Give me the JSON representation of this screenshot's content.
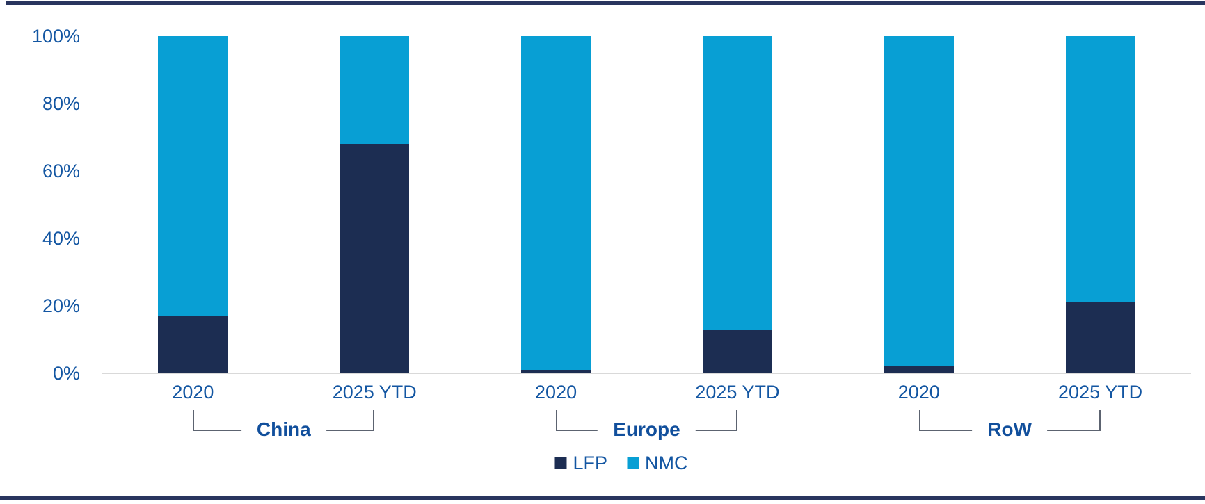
{
  "colors": {
    "lfp": "#1C2D52",
    "nmc": "#089FD4",
    "axis_text": "#1356A2",
    "group_text": "#114F9C",
    "bracket_line": "#5C6370",
    "baseline": "#D9D9D9",
    "border_rule": "#29355E"
  },
  "chart_data": {
    "type": "bar",
    "stacked": true,
    "percent_stacked": true,
    "title": "",
    "xlabel": "",
    "ylabel": "",
    "ylim": [
      0,
      100
    ],
    "grid": false,
    "legend_position": "bottom",
    "categories": [
      "2020",
      "2025 YTD",
      "2020",
      "2025 YTD",
      "2020",
      "2025 YTD"
    ],
    "groups": [
      {
        "label": "China",
        "category_indices": [
          0,
          1
        ]
      },
      {
        "label": "Europe",
        "category_indices": [
          2,
          3
        ]
      },
      {
        "label": "RoW",
        "category_indices": [
          4,
          5
        ]
      }
    ],
    "series": [
      {
        "name": "LFP",
        "color": "#1C2D52",
        "values": [
          17,
          68,
          1,
          13,
          2,
          21
        ]
      },
      {
        "name": "NMC",
        "color": "#089FD4",
        "values": [
          83,
          32,
          99,
          87,
          98,
          79
        ]
      }
    ],
    "y_ticks": [
      {
        "value": 0,
        "label": "0%"
      },
      {
        "value": 20,
        "label": "20%"
      },
      {
        "value": 40,
        "label": "40%"
      },
      {
        "value": 60,
        "label": "60%"
      },
      {
        "value": 80,
        "label": "80%"
      },
      {
        "value": 100,
        "label": "100%"
      }
    ]
  },
  "legend": {
    "items": [
      {
        "label": "LFP",
        "color": "#1C2D52"
      },
      {
        "label": "NMC",
        "color": "#089FD4"
      }
    ]
  }
}
